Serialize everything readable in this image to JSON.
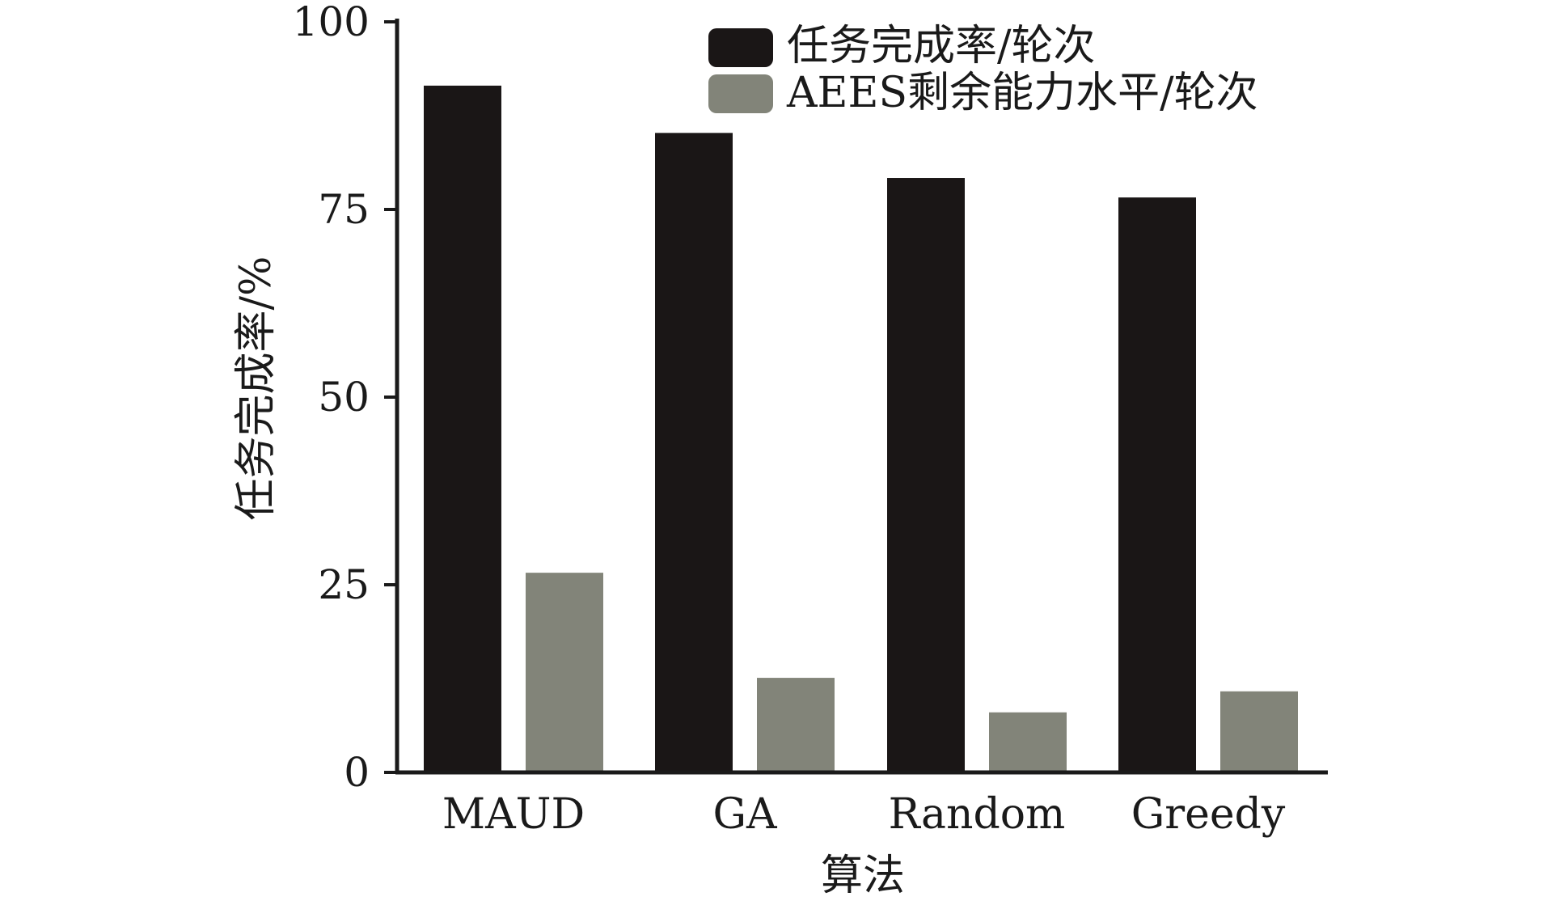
{
  "chart_data": {
    "type": "bar",
    "categories": [
      "MAUD",
      "GA",
      "Random",
      "Greedy"
    ],
    "series": [
      {
        "name": "任务完成率/轮次",
        "values": [
          91.5,
          85.2,
          79.2,
          76.6
        ],
        "color": "#1a1616"
      },
      {
        "name": "AEES剩余能力水平/轮次",
        "values": [
          26.6,
          12.6,
          8.0,
          10.8
        ],
        "color": "#828479"
      }
    ],
    "xlabel": "算法",
    "ylabel": "任务完成率/%",
    "ylim": [
      0,
      100
    ],
    "yticks": [
      0,
      25,
      50,
      75,
      100
    ],
    "grid": false,
    "legend_position": "top-right"
  }
}
